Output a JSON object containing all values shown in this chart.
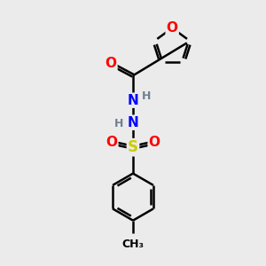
{
  "background_color": "#ebebeb",
  "atom_colors": {
    "C": "#000000",
    "H": "#708090",
    "N": "#0000ff",
    "O": "#ff0000",
    "S": "#cccc00"
  },
  "bond_color": "#000000",
  "bond_width": 1.8,
  "figsize": [
    3.0,
    3.0
  ],
  "dpi": 100,
  "xlim": [
    0,
    10
  ],
  "ylim": [
    0,
    10
  ]
}
